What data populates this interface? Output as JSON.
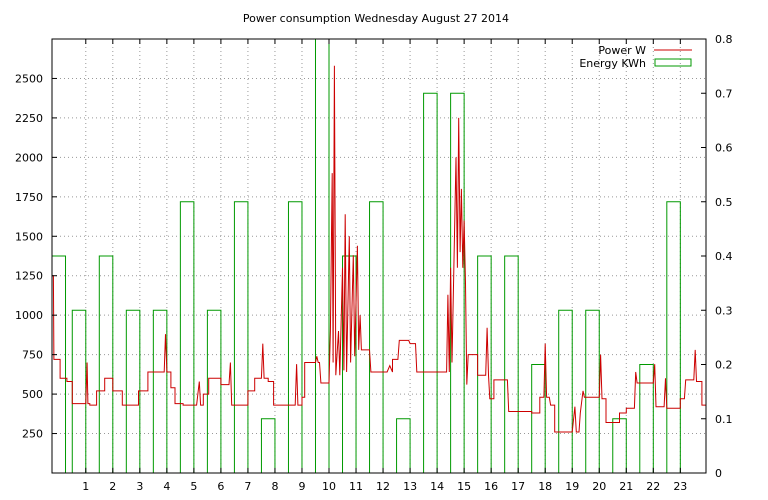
{
  "chart_data": {
    "type": "bar",
    "title": "Power consumption Wednesday August 27 2014",
    "xlabel": "",
    "ylabel": "",
    "y2label": "",
    "xlim": [
      -0.25,
      23.95
    ],
    "ylim": [
      0,
      2750
    ],
    "y2lim": [
      0,
      0.8
    ],
    "x_ticks": [
      1,
      2,
      3,
      4,
      5,
      6,
      7,
      8,
      9,
      10,
      11,
      12,
      13,
      14,
      15,
      16,
      17,
      18,
      19,
      20,
      21,
      22,
      23
    ],
    "y_ticks": [
      250,
      500,
      750,
      1000,
      1250,
      1500,
      1750,
      2000,
      2250,
      2500
    ],
    "y2_ticks": [
      "0",
      "0.1",
      "0.2",
      "0.3",
      "0.4",
      "0.5",
      "0.6",
      "0.7",
      "0.8"
    ],
    "grid": true,
    "legend_position": "top-right",
    "colors": {
      "power": "#cc0000",
      "energy": "#009900",
      "grid": "#999999",
      "axis": "#000000"
    },
    "series": [
      {
        "name": "Energy KWh",
        "axis": "right",
        "style": "boxes",
        "box_width": 0.5,
        "x": [
          0,
          0.75,
          1.75,
          2.75,
          3.75,
          4.75,
          5.75,
          6.75,
          7.75,
          8.75,
          9.75,
          10.75,
          11.75,
          12.75,
          13.75,
          14.75,
          15.75,
          16.75,
          17.75,
          18.75,
          19.75,
          20.75,
          21.75,
          22.75
        ],
        "values": [
          0.4,
          0.3,
          0.4,
          0.3,
          0.3,
          0.5,
          0.3,
          0.5,
          0.1,
          0.5,
          0.8,
          0.4,
          0.5,
          0.1,
          0.7,
          0.7,
          0.4,
          0.4,
          0.2,
          0.3,
          0.3,
          0.1,
          0.2,
          0.5
        ]
      },
      {
        "name": "Power W",
        "axis": "left",
        "style": "steps",
        "points": [
          [
            -0.25,
            1250
          ],
          [
            -0.2,
            1250
          ],
          [
            -0.18,
            720
          ],
          [
            0.05,
            720
          ],
          [
            0.05,
            600
          ],
          [
            0.3,
            600
          ],
          [
            0.3,
            580
          ],
          [
            0.5,
            580
          ],
          [
            0.5,
            440
          ],
          [
            1.0,
            440
          ],
          [
            1.05,
            700
          ],
          [
            1.08,
            440
          ],
          [
            1.15,
            440
          ],
          [
            1.15,
            430
          ],
          [
            1.4,
            430
          ],
          [
            1.4,
            520
          ],
          [
            1.7,
            520
          ],
          [
            1.7,
            600
          ],
          [
            2.0,
            600
          ],
          [
            2.0,
            520
          ],
          [
            2.35,
            520
          ],
          [
            2.35,
            430
          ],
          [
            2.8,
            430
          ],
          [
            2.95,
            430
          ],
          [
            2.95,
            520
          ],
          [
            3.3,
            520
          ],
          [
            3.3,
            640
          ],
          [
            3.9,
            640
          ],
          [
            3.95,
            880
          ],
          [
            4.0,
            640
          ],
          [
            4.15,
            640
          ],
          [
            4.15,
            540
          ],
          [
            4.3,
            540
          ],
          [
            4.3,
            440
          ],
          [
            4.6,
            440
          ],
          [
            4.6,
            430
          ],
          [
            5.1,
            430
          ],
          [
            5.2,
            580
          ],
          [
            5.25,
            430
          ],
          [
            5.35,
            430
          ],
          [
            5.35,
            500
          ],
          [
            5.55,
            500
          ],
          [
            5.55,
            600
          ],
          [
            6.0,
            600
          ],
          [
            6.0,
            560
          ],
          [
            6.3,
            560
          ],
          [
            6.35,
            700
          ],
          [
            6.4,
            430
          ],
          [
            6.75,
            430
          ],
          [
            7.0,
            430
          ],
          [
            7.0,
            520
          ],
          [
            7.25,
            520
          ],
          [
            7.25,
            600
          ],
          [
            7.5,
            600
          ],
          [
            7.55,
            820
          ],
          [
            7.6,
            600
          ],
          [
            7.75,
            600
          ],
          [
            7.75,
            580
          ],
          [
            7.95,
            580
          ],
          [
            7.95,
            430
          ],
          [
            8.5,
            430
          ],
          [
            8.75,
            430
          ],
          [
            8.8,
            690
          ],
          [
            8.85,
            430
          ],
          [
            9.0,
            430
          ],
          [
            9.0,
            480
          ],
          [
            9.1,
            480
          ],
          [
            9.1,
            700
          ],
          [
            9.5,
            700
          ],
          [
            9.55,
            740
          ],
          [
            9.6,
            700
          ],
          [
            9.65,
            700
          ],
          [
            9.7,
            570
          ],
          [
            10.0,
            570
          ],
          [
            10.05,
            900
          ],
          [
            10.12,
            1900
          ],
          [
            10.15,
            700
          ],
          [
            10.2,
            2580
          ],
          [
            10.25,
            620
          ],
          [
            10.35,
            900
          ],
          [
            10.4,
            620
          ],
          [
            10.5,
            1300
          ],
          [
            10.55,
            650
          ],
          [
            10.6,
            1640
          ],
          [
            10.65,
            640
          ],
          [
            10.75,
            1500
          ],
          [
            10.8,
            700
          ],
          [
            10.9,
            1380
          ],
          [
            10.95,
            740
          ],
          [
            11.05,
            1440
          ],
          [
            11.1,
            780
          ],
          [
            11.15,
            1000
          ],
          [
            11.2,
            780
          ],
          [
            11.5,
            780
          ],
          [
            11.55,
            640
          ],
          [
            11.9,
            640
          ],
          [
            12.15,
            640
          ],
          [
            12.25,
            680
          ],
          [
            12.35,
            640
          ],
          [
            12.35,
            720
          ],
          [
            12.55,
            720
          ],
          [
            12.6,
            840
          ],
          [
            12.95,
            840
          ],
          [
            13.0,
            820
          ],
          [
            13.2,
            820
          ],
          [
            13.25,
            640
          ],
          [
            13.6,
            640
          ],
          [
            13.9,
            640
          ],
          [
            14.0,
            640
          ],
          [
            14.35,
            640
          ],
          [
            14.4,
            1130
          ],
          [
            14.45,
            640
          ],
          [
            14.5,
            1300
          ],
          [
            14.55,
            700
          ],
          [
            14.7,
            2000
          ],
          [
            14.75,
            1300
          ],
          [
            14.8,
            2250
          ],
          [
            14.85,
            1400
          ],
          [
            14.9,
            1800
          ],
          [
            14.95,
            1300
          ],
          [
            15.0,
            1600
          ],
          [
            15.05,
            1200
          ],
          [
            15.1,
            560
          ],
          [
            15.15,
            750
          ],
          [
            15.5,
            750
          ],
          [
            15.5,
            620
          ],
          [
            15.8,
            620
          ],
          [
            15.85,
            920
          ],
          [
            15.9,
            620
          ],
          [
            15.95,
            470
          ],
          [
            16.1,
            470
          ],
          [
            16.1,
            590
          ],
          [
            16.6,
            590
          ],
          [
            16.65,
            390
          ],
          [
            17.5,
            390
          ],
          [
            17.5,
            380
          ],
          [
            17.8,
            380
          ],
          [
            17.8,
            480
          ],
          [
            17.95,
            480
          ],
          [
            18.0,
            820
          ],
          [
            18.05,
            480
          ],
          [
            18.15,
            480
          ],
          [
            18.2,
            430
          ],
          [
            18.35,
            430
          ],
          [
            18.35,
            260
          ],
          [
            19.0,
            260
          ],
          [
            19.1,
            420
          ],
          [
            19.15,
            260
          ],
          [
            19.25,
            260
          ],
          [
            19.3,
            380
          ],
          [
            19.4,
            520
          ],
          [
            19.45,
            480
          ],
          [
            20.0,
            480
          ],
          [
            20.05,
            750
          ],
          [
            20.1,
            470
          ],
          [
            20.25,
            470
          ],
          [
            20.25,
            320
          ],
          [
            20.75,
            320
          ],
          [
            20.75,
            380
          ],
          [
            21.0,
            380
          ],
          [
            21.0,
            410
          ],
          [
            21.3,
            410
          ],
          [
            21.35,
            640
          ],
          [
            21.4,
            570
          ],
          [
            22.0,
            570
          ],
          [
            22.05,
            690
          ],
          [
            22.1,
            420
          ],
          [
            22.4,
            420
          ],
          [
            22.45,
            600
          ],
          [
            22.5,
            410
          ],
          [
            23.0,
            410
          ],
          [
            23.0,
            470
          ],
          [
            23.15,
            470
          ],
          [
            23.2,
            590
          ],
          [
            23.5,
            590
          ],
          [
            23.55,
            780
          ],
          [
            23.6,
            580
          ],
          [
            23.8,
            580
          ],
          [
            23.8,
            430
          ],
          [
            23.95,
            430
          ]
        ]
      }
    ]
  }
}
